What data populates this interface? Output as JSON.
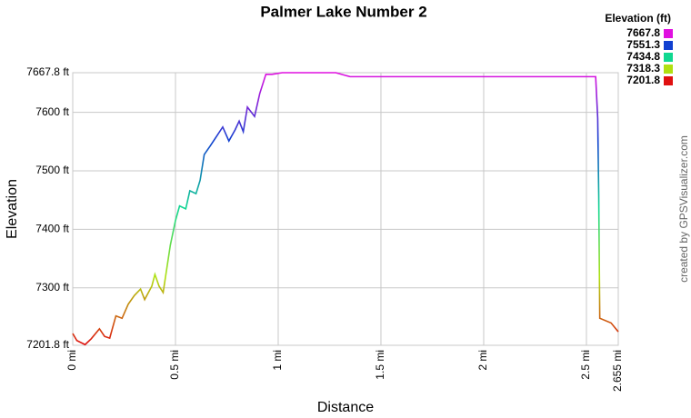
{
  "chart_data": {
    "type": "line",
    "title": "Palmer Lake Number 2",
    "x_label": "Distance",
    "y_label": "Elevation",
    "credit": "created by GPSVisualizer.com",
    "legend": {
      "title": "Elevation (ft)",
      "entries": [
        {
          "value": 7667.8,
          "color": "#e010e0"
        },
        {
          "value": 7551.3,
          "color": "#1040d0"
        },
        {
          "value": 7434.8,
          "color": "#10d890"
        },
        {
          "value": 7318.3,
          "color": "#b0e010"
        },
        {
          "value": 7201.8,
          "color": "#e01010"
        }
      ]
    },
    "grid": true,
    "xlim": [
      0,
      2.655
    ],
    "ylim": [
      7201.8,
      7667.8
    ],
    "xticks": [
      {
        "value": 0,
        "label": "0 mi"
      },
      {
        "value": 0.5,
        "label": "0.5 mi"
      },
      {
        "value": 1,
        "label": "1 mi"
      },
      {
        "value": 1.5,
        "label": "1.5 mi"
      },
      {
        "value": 2,
        "label": "2 mi"
      },
      {
        "value": 2.5,
        "label": "2.5 mi"
      },
      {
        "value": 2.655,
        "label": "2.655 mi"
      }
    ],
    "yticks": [
      {
        "value": 7201.8,
        "label": "7201.8 ft"
      },
      {
        "value": 7300,
        "label": "7300 ft"
      },
      {
        "value": 7400,
        "label": "7400 ft"
      },
      {
        "value": 7500,
        "label": "7500 ft"
      },
      {
        "value": 7600,
        "label": "7600 ft"
      },
      {
        "value": 7667.8,
        "label": "7667.8 ft"
      }
    ],
    "x": [
      0,
      0.02,
      0.06,
      0.09,
      0.13,
      0.155,
      0.18,
      0.21,
      0.24,
      0.27,
      0.3,
      0.33,
      0.35,
      0.385,
      0.4,
      0.42,
      0.44,
      0.475,
      0.5,
      0.52,
      0.55,
      0.57,
      0.6,
      0.62,
      0.64,
      0.67,
      0.7,
      0.73,
      0.76,
      0.79,
      0.81,
      0.83,
      0.85,
      0.885,
      0.91,
      0.94,
      0.97,
      1.02,
      1.28,
      1.35,
      2.545,
      2.555,
      2.56,
      2.565,
      2.62,
      2.655
    ],
    "values": [
      7222,
      7210,
      7203,
      7213,
      7230,
      7217,
      7214,
      7252,
      7248,
      7272,
      7287,
      7298,
      7280,
      7303,
      7323,
      7303,
      7292,
      7373,
      7415,
      7440,
      7435,
      7466,
      7461,
      7484,
      7528,
      7543,
      7559,
      7575,
      7551,
      7570,
      7585,
      7567,
      7609,
      7593,
      7632,
      7665,
      7665,
      7667.8,
      7667.8,
      7661,
      7661,
      7590,
      7458,
      7248,
      7240,
      7225
    ]
  }
}
